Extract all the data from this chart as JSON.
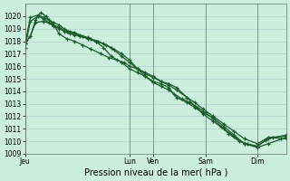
{
  "background_color": "#cceedd",
  "grid_color": "#aacccc",
  "line_color": "#1a5c2a",
  "xlabel": "Pression niveau de la mer( hPa )",
  "ylim": [
    1009,
    1021
  ],
  "yticks": [
    1009,
    1010,
    1011,
    1012,
    1013,
    1014,
    1015,
    1016,
    1017,
    1018,
    1019,
    1020
  ],
  "xtick_labels": [
    "Jeu",
    "Lun",
    "Ven",
    "Sam",
    "Dim"
  ],
  "xtick_positions": [
    0,
    0.4,
    0.49,
    0.69,
    0.89
  ],
  "series": [
    {
      "x": [
        0.0,
        0.02,
        0.05,
        0.07,
        0.09,
        0.11,
        0.13,
        0.15,
        0.17,
        0.19,
        0.21,
        0.24,
        0.27,
        0.3,
        0.33,
        0.37,
        0.4,
        0.43,
        0.46,
        0.49,
        0.52,
        0.55,
        0.57,
        0.6,
        0.63,
        0.66,
        0.69,
        0.72,
        0.75,
        0.78,
        0.82,
        0.85,
        0.89,
        0.92,
        0.95,
        0.98,
        1.0
      ],
      "y": [
        1017.5,
        1019.6,
        1020.0,
        1019.8,
        1019.5,
        1019.2,
        1019.0,
        1018.8,
        1018.6,
        1018.5,
        1018.4,
        1018.2,
        1018.0,
        1017.8,
        1017.5,
        1017.0,
        1016.5,
        1015.8,
        1015.2,
        1014.7,
        1014.4,
        1014.1,
        1013.8,
        1013.4,
        1013.1,
        1012.7,
        1012.3,
        1011.8,
        1011.2,
        1010.6,
        1010.0,
        1009.8,
        1009.6,
        1010.1,
        1010.3,
        1010.2,
        1010.2
      ]
    },
    {
      "x": [
        0.0,
        0.02,
        0.05,
        0.07,
        0.09,
        0.11,
        0.13,
        0.15,
        0.17,
        0.19,
        0.21,
        0.24,
        0.27,
        0.3,
        0.33,
        0.37,
        0.4,
        0.43,
        0.46,
        0.49,
        0.52,
        0.55,
        0.58,
        0.62,
        0.65,
        0.68,
        0.72,
        0.76,
        0.8,
        0.84,
        0.89,
        0.93,
        1.0
      ],
      "y": [
        1017.8,
        1019.9,
        1020.1,
        1019.9,
        1019.7,
        1019.5,
        1019.3,
        1019.0,
        1018.8,
        1018.7,
        1018.5,
        1018.3,
        1018.0,
        1017.5,
        1016.8,
        1016.3,
        1015.8,
        1015.5,
        1015.2,
        1014.8,
        1014.6,
        1014.3,
        1013.5,
        1013.1,
        1012.7,
        1012.3,
        1011.9,
        1011.2,
        1010.5,
        1009.8,
        1009.5,
        1009.8,
        1010.3
      ]
    },
    {
      "x": [
        0.0,
        0.02,
        0.04,
        0.06,
        0.08,
        0.11,
        0.13,
        0.16,
        0.19,
        0.22,
        0.25,
        0.29,
        0.32,
        0.35,
        0.38,
        0.4,
        0.43,
        0.46,
        0.49,
        0.52,
        0.55,
        0.58,
        0.62,
        0.65,
        0.68,
        0.72,
        0.76,
        0.8,
        0.84,
        0.89,
        0.93,
        1.0
      ],
      "y": [
        1017.8,
        1018.4,
        1019.7,
        1020.3,
        1020.0,
        1019.3,
        1018.6,
        1018.2,
        1018.0,
        1017.7,
        1017.4,
        1017.0,
        1016.7,
        1016.5,
        1016.3,
        1016.0,
        1015.8,
        1015.5,
        1015.2,
        1014.8,
        1014.6,
        1014.3,
        1013.5,
        1013.1,
        1012.6,
        1012.0,
        1011.4,
        1010.8,
        1010.2,
        1009.8,
        1010.3,
        1010.4
      ]
    },
    {
      "x": [
        0.0,
        0.02,
        0.04,
        0.07,
        0.1,
        0.13,
        0.16,
        0.19,
        0.22,
        0.25,
        0.28,
        0.31,
        0.34,
        0.37,
        0.4,
        0.43,
        0.46,
        0.49,
        0.52,
        0.55,
        0.58,
        0.62,
        0.65,
        0.68,
        0.72,
        0.76,
        0.8,
        0.84,
        0.89,
        0.93,
        1.0
      ],
      "y": [
        1017.8,
        1018.4,
        1019.5,
        1019.6,
        1019.4,
        1019.1,
        1018.8,
        1018.6,
        1018.4,
        1018.2,
        1018.0,
        1017.7,
        1017.3,
        1016.8,
        1016.3,
        1015.8,
        1015.4,
        1015.1,
        1014.8,
        1014.5,
        1014.1,
        1013.5,
        1012.8,
        1012.2,
        1011.6,
        1011.0,
        1010.4,
        1009.8,
        1009.6,
        1010.2,
        1010.5
      ]
    }
  ]
}
